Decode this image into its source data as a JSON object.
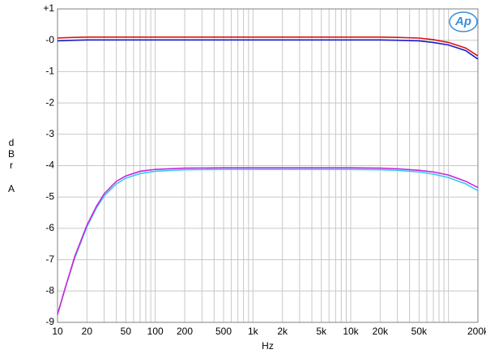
{
  "chart_data": {
    "type": "line",
    "xlabel": "Hz",
    "ylabel": [
      "d",
      "B",
      "r",
      "A"
    ],
    "logo": "Ap",
    "xscale": "log",
    "grid": true,
    "x": [
      10,
      12,
      15,
      20,
      25,
      30,
      40,
      50,
      70,
      100,
      200,
      500,
      1000,
      2000,
      5000,
      10000,
      20000,
      30000,
      50000,
      70000,
      100000,
      150000,
      200000
    ],
    "series": [
      {
        "color": "#33ccee",
        "values": [
          -8.75,
          -7.9,
          -6.95,
          -5.95,
          -5.35,
          -4.97,
          -4.58,
          -4.4,
          -4.25,
          -4.18,
          -4.13,
          -4.12,
          -4.12,
          -4.12,
          -4.12,
          -4.12,
          -4.13,
          -4.15,
          -4.2,
          -4.27,
          -4.38,
          -4.58,
          -4.8
        ]
      },
      {
        "color": "#cc22dd",
        "values": [
          -8.75,
          -7.9,
          -6.9,
          -5.9,
          -5.3,
          -4.9,
          -4.5,
          -4.33,
          -4.18,
          -4.12,
          -4.08,
          -4.07,
          -4.07,
          -4.07,
          -4.07,
          -4.07,
          -4.08,
          -4.1,
          -4.15,
          -4.2,
          -4.3,
          -4.5,
          -4.7
        ]
      },
      {
        "color": "#1a1acc",
        "values": [
          -0.02,
          -0.01,
          0,
          0.01,
          0.01,
          0.01,
          0.01,
          0.01,
          0.01,
          0.01,
          0.01,
          0.01,
          0.01,
          0.01,
          0.01,
          0.01,
          0.01,
          0,
          -0.02,
          -0.07,
          -0.15,
          -0.33,
          -0.6
        ]
      },
      {
        "color": "#dd1111",
        "values": [
          0.07,
          0.08,
          0.09,
          0.1,
          0.1,
          0.1,
          0.1,
          0.1,
          0.1,
          0.1,
          0.1,
          0.1,
          0.1,
          0.1,
          0.1,
          0.1,
          0.1,
          0.09,
          0.07,
          0.02,
          -0.07,
          -0.25,
          -0.5
        ]
      }
    ],
    "xlim": [
      10,
      200000
    ],
    "ylim": [
      -9,
      1
    ],
    "xticks": [
      10,
      20,
      50,
      100,
      200,
      500,
      {
        "value": 1000,
        "label": "1k"
      },
      {
        "value": 2000,
        "label": "2k"
      },
      {
        "value": 5000,
        "label": "5k"
      },
      {
        "value": 10000,
        "label": "10k"
      },
      {
        "value": 20000,
        "label": "20k"
      },
      {
        "value": 50000,
        "label": "50k"
      },
      {
        "value": 200000,
        "label": "200k"
      }
    ],
    "xminorticks": [
      30,
      40,
      60,
      70,
      80,
      90,
      300,
      400,
      600,
      700,
      800,
      900,
      3000,
      4000,
      6000,
      7000,
      8000,
      9000,
      30000,
      40000,
      60000,
      70000,
      80000,
      90000,
      100000
    ],
    "yticks": [
      {
        "value": 1,
        "label": "+1"
      },
      {
        "value": 0,
        "label": "-0"
      },
      -1,
      -2,
      -3,
      -4,
      -5,
      -6,
      -7,
      -8,
      -9
    ]
  }
}
